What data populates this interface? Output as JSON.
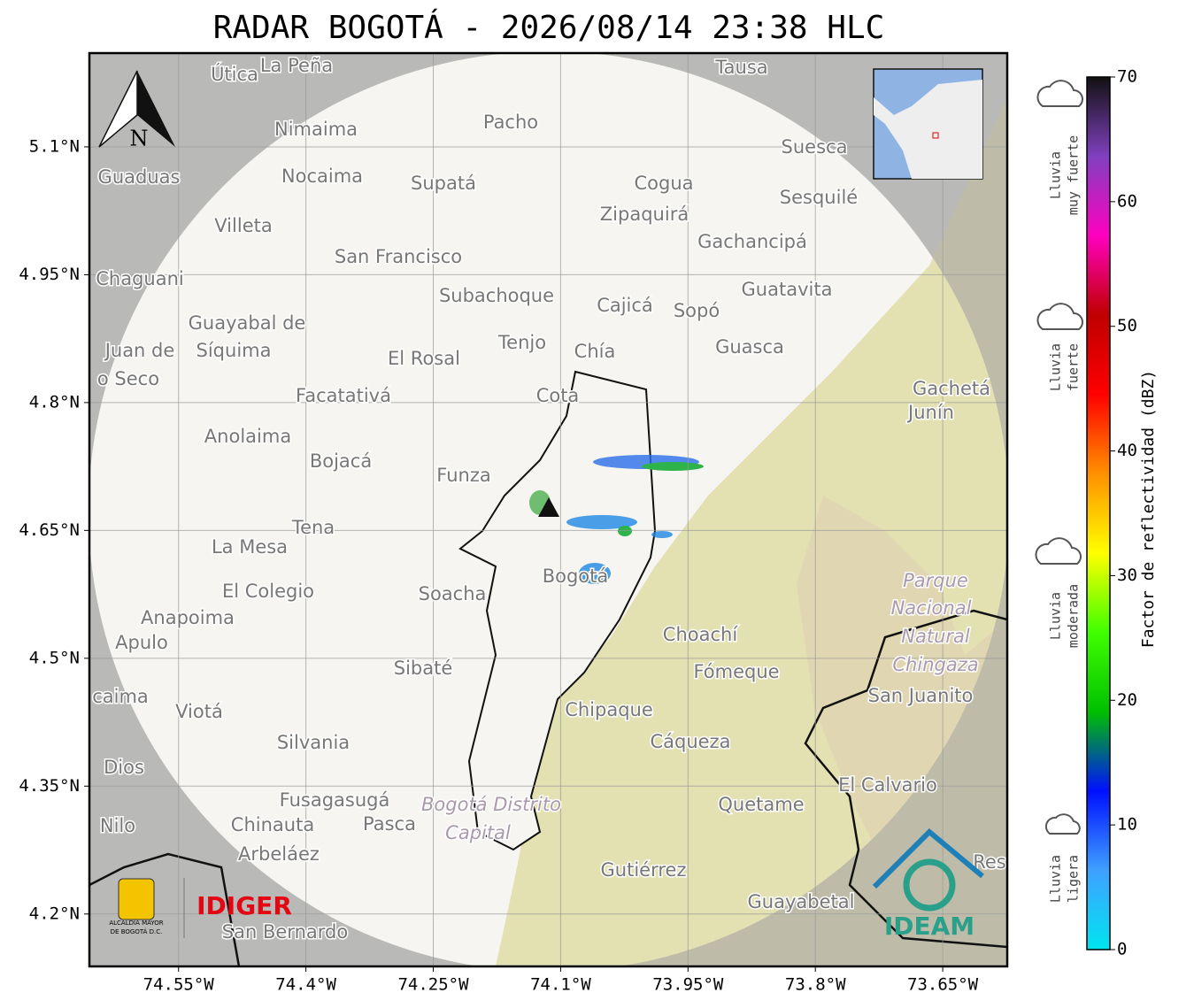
{
  "title": "RADAR BOGOTÁ - 2026/08/14 23:38 HLC",
  "north": "N",
  "map": {
    "xlim": [
      -74.655,
      -73.574
    ],
    "ylim": [
      4.1385,
      5.21
    ],
    "grid": true,
    "xticks": [
      {
        "value": -74.55,
        "label": "74.55°W"
      },
      {
        "value": -74.4,
        "label": "74.4°W"
      },
      {
        "value": -74.25,
        "label": "74.25°W"
      },
      {
        "value": -74.1,
        "label": "74.1°W"
      },
      {
        "value": -73.95,
        "label": "73.95°W"
      },
      {
        "value": -73.8,
        "label": "73.8°W"
      },
      {
        "value": -73.65,
        "label": "73.65°W"
      }
    ],
    "yticks": [
      {
        "value": 5.1,
        "label": "5.1°N"
      },
      {
        "value": 4.95,
        "label": "4.95°N"
      },
      {
        "value": 4.8,
        "label": "4.8°N"
      },
      {
        "value": 4.65,
        "label": "4.65°N"
      },
      {
        "value": 4.5,
        "label": "4.5°N"
      },
      {
        "value": 4.35,
        "label": "4.35°N"
      },
      {
        "value": 4.2,
        "label": "4.2°N"
      }
    ],
    "places": [
      "Útica",
      "La Peña",
      "Tausa",
      "Pacho",
      "Nimaima",
      "Suesca",
      "Guaduas",
      "Nocaima",
      "Supatá",
      "Cogua",
      "Sesquilé",
      "Zipaquirá",
      "Villeta",
      "Gachancipá",
      "San Francisco",
      "Chaguani",
      "Guatavita",
      "Subachoque",
      "Cajicá",
      "Sopó",
      "Guayabal de",
      "Síquima",
      "Tenjo",
      "Guasca",
      "Juan de",
      "El Rosal",
      "Chía",
      "o Seco",
      "Gachetá",
      "Junín",
      "Facatativá",
      "Cota",
      "Anolaima",
      "Bojacá",
      "Funza",
      "Tena",
      "La Mesa",
      "Soacha",
      "El Colegio",
      "Bogotá",
      "Parque",
      "Anapoima",
      "Nacional",
      "Natural",
      "Choachí",
      "Apulo",
      "Chingaza",
      "Sibaté",
      "Fómeque",
      "San Juanito",
      "caima",
      "Viotá",
      "Chipaque",
      "Cáqueza",
      "Silvania",
      "Dios",
      "El Calvario",
      "Fusagasugá",
      "Quetame",
      "Bogotá Distrito",
      "Chinauta",
      "Pasca",
      "Nilo",
      "Capital",
      "Arbeláez",
      "Gutiérrez",
      "Res",
      "Guayabetal",
      "San Bernardo"
    ]
  },
  "colorbar": {
    "label": "Factor de reflectividad (dBZ)",
    "lim": [
      0,
      70
    ],
    "ticks": [
      0,
      10,
      20,
      30,
      40,
      50,
      60,
      70
    ],
    "colors": [
      "#00e5f0",
      "#3fa0ff",
      "#0010ff",
      "#00c000",
      "#40ff00",
      "#ffff00",
      "#ff9000",
      "#ff0000",
      "#c00000",
      "#ff00c0",
      "#8040c0",
      "#111111"
    ]
  },
  "rain_levels": [
    [
      "Lluvia",
      "muy fuerte"
    ],
    [
      "Lluvia",
      "fuerte"
    ],
    [
      "Lluvia",
      "moderada"
    ],
    [
      "Lluvia",
      "ligera"
    ]
  ],
  "logos": {
    "alcaldia": [
      "ALCALDÍA MAYOR",
      "DE BOGOTÁ D.C."
    ],
    "idiger": "IDIGER",
    "ideam": "IDEAM"
  }
}
